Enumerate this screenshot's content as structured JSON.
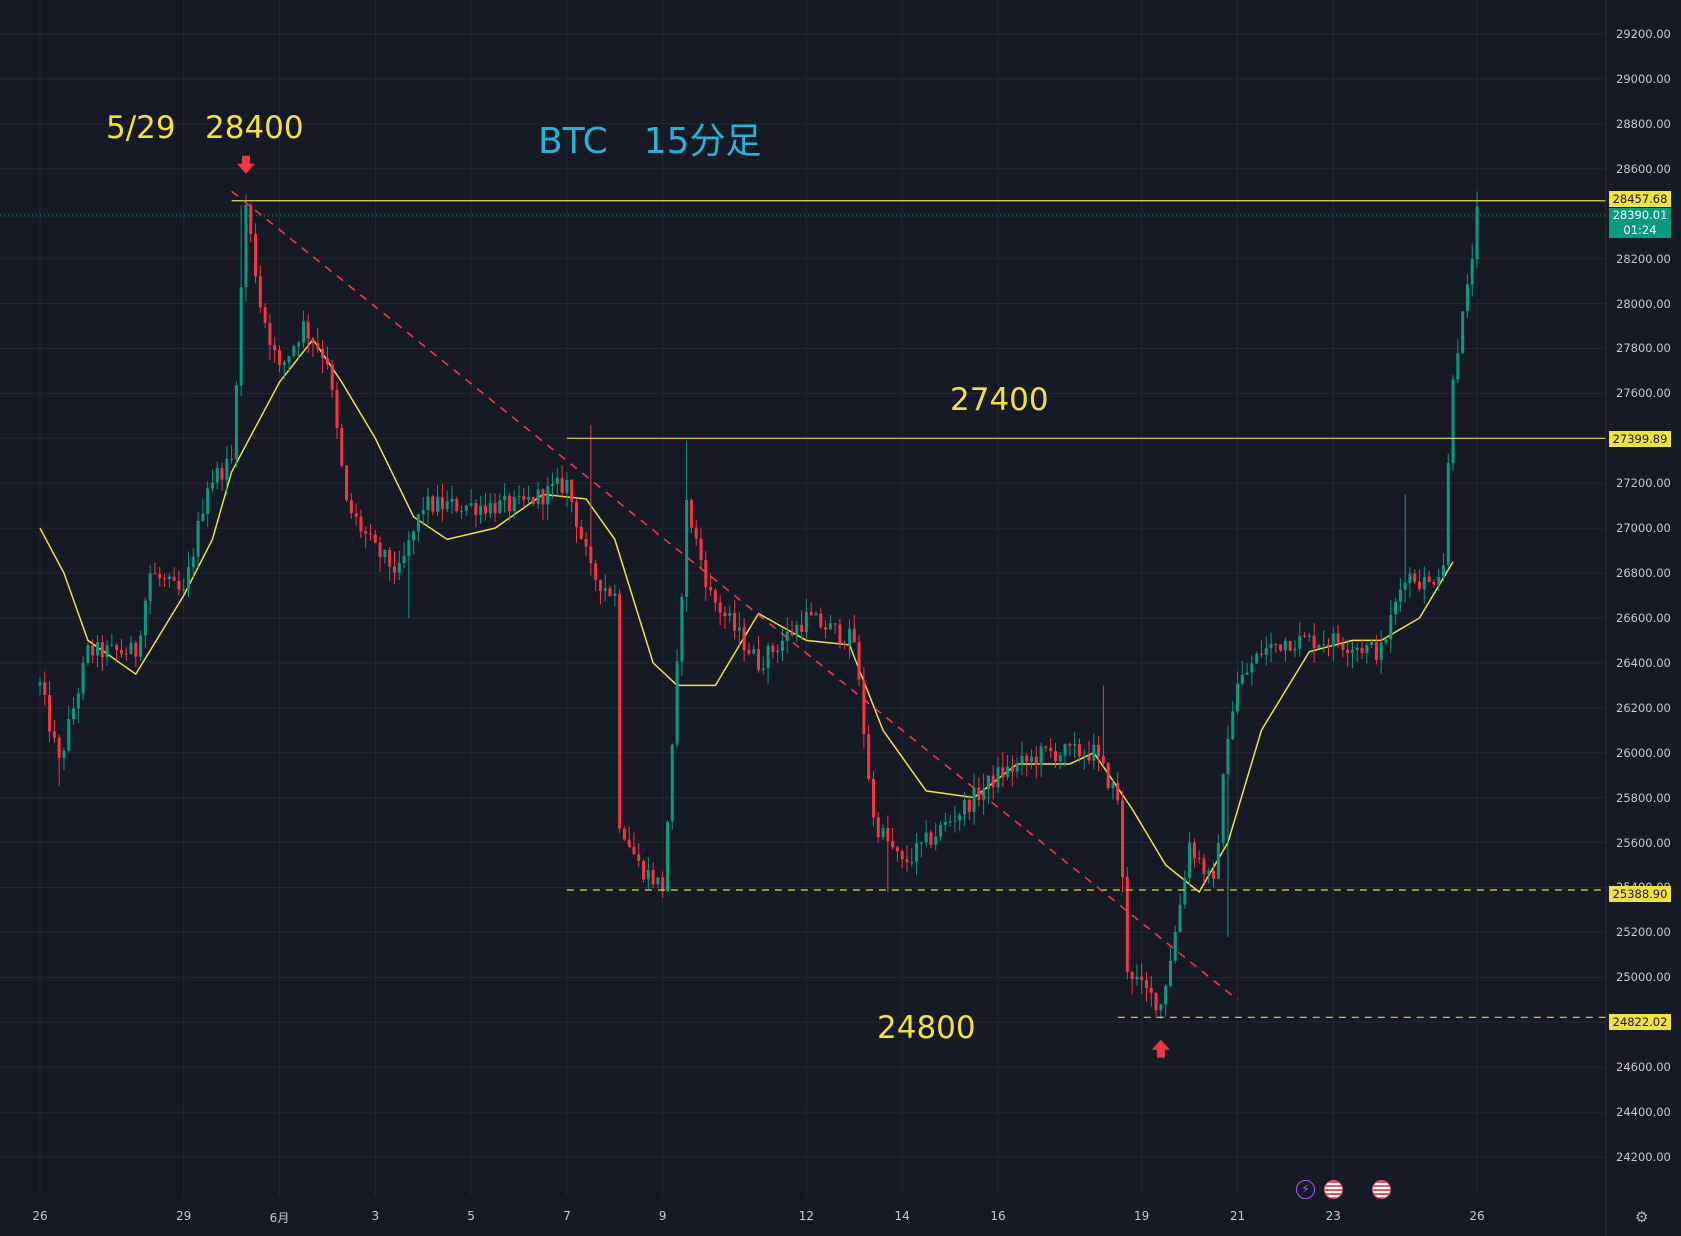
{
  "chart_data": {
    "type": "candlestick",
    "title": "BTC　15分足",
    "xlabel": "",
    "ylabel": "",
    "y_ticks": [
      "29200.00",
      "29000.00",
      "28800.00",
      "28600.00",
      "28400.00",
      "28200.00",
      "28000.00",
      "27800.00",
      "27600.00",
      "27400.00",
      "27200.00",
      "27000.00",
      "26800.00",
      "26600.00",
      "26400.00",
      "26200.00",
      "26000.00",
      "25800.00",
      "25600.00",
      "25400.00",
      "25200.00",
      "25000.00",
      "24800.00",
      "24600.00",
      "24400.00",
      "24200.00"
    ],
    "x_ticks": [
      "26",
      "29",
      "6月",
      "3",
      "5",
      "7",
      "9",
      "12",
      "14",
      "16",
      "19",
      "21",
      "23",
      "26"
    ],
    "ylim": [
      24050,
      29320
    ],
    "grid": true,
    "moving_average_color": "#f2e142",
    "up_color": "#089981",
    "down_color": "#f23645",
    "price_path": [
      {
        "d": 0,
        "p": 26300
      },
      {
        "d": 0.4,
        "p": 25950
      },
      {
        "d": 1.0,
        "p": 26450
      },
      {
        "d": 2.0,
        "p": 26450
      },
      {
        "d": 2.3,
        "p": 26800
      },
      {
        "d": 3.0,
        "p": 26700
      },
      {
        "d": 3.5,
        "p": 27200
      },
      {
        "d": 4.0,
        "p": 27300
      },
      {
        "d": 4.3,
        "p": 28440
      },
      {
        "d": 4.6,
        "p": 28000
      },
      {
        "d": 5.0,
        "p": 27700
      },
      {
        "d": 5.5,
        "p": 27900
      },
      {
        "d": 6.0,
        "p": 27750
      },
      {
        "d": 6.4,
        "p": 27100
      },
      {
        "d": 7.0,
        "p": 26900
      },
      {
        "d": 7.5,
        "p": 26800
      },
      {
        "d": 8.0,
        "p": 27100
      },
      {
        "d": 9.0,
        "p": 27100
      },
      {
        "d": 10.0,
        "p": 27100
      },
      {
        "d": 11.0,
        "p": 27200
      },
      {
        "d": 11.5,
        "p": 26800
      },
      {
        "d": 12.0,
        "p": 26700
      },
      {
        "d": 12.1,
        "p": 25700
      },
      {
        "d": 12.5,
        "p": 25500
      },
      {
        "d": 13.0,
        "p": 25400
      },
      {
        "d": 13.2,
        "p": 26000
      },
      {
        "d": 13.5,
        "p": 27100
      },
      {
        "d": 14.0,
        "p": 26700
      },
      {
        "d": 15.0,
        "p": 26400
      },
      {
        "d": 16.0,
        "p": 26600
      },
      {
        "d": 17.0,
        "p": 26500
      },
      {
        "d": 17.4,
        "p": 25700
      },
      {
        "d": 18.0,
        "p": 25500
      },
      {
        "d": 19.0,
        "p": 25700
      },
      {
        "d": 20.0,
        "p": 25900
      },
      {
        "d": 21.0,
        "p": 26000
      },
      {
        "d": 22.0,
        "p": 26000
      },
      {
        "d": 22.5,
        "p": 25800
      },
      {
        "d": 22.7,
        "p": 25050
      },
      {
        "d": 23.0,
        "p": 24950
      },
      {
        "d": 23.4,
        "p": 24880
      },
      {
        "d": 23.7,
        "p": 25200
      },
      {
        "d": 24.0,
        "p": 25600
      },
      {
        "d": 24.5,
        "p": 25400
      },
      {
        "d": 24.8,
        "p": 26100
      },
      {
        "d": 25.0,
        "p": 26300
      },
      {
        "d": 25.5,
        "p": 26450
      },
      {
        "d": 26.0,
        "p": 26500
      },
      {
        "d": 27.0,
        "p": 26500
      },
      {
        "d": 28.0,
        "p": 26450
      },
      {
        "d": 28.5,
        "p": 26800
      },
      {
        "d": 29.0,
        "p": 26750
      },
      {
        "d": 29.3,
        "p": 26850
      },
      {
        "d": 29.5,
        "p": 27700
      },
      {
        "d": 29.8,
        "p": 28050
      },
      {
        "d": 30.0,
        "p": 28390
      }
    ],
    "moving_average": [
      {
        "d": 0,
        "p": 27000
      },
      {
        "d": 0.5,
        "p": 26800
      },
      {
        "d": 1.0,
        "p": 26500
      },
      {
        "d": 2.0,
        "p": 26350
      },
      {
        "d": 3.0,
        "p": 26700
      },
      {
        "d": 3.6,
        "p": 26950
      },
      {
        "d": 4.0,
        "p": 27250
      },
      {
        "d": 5.0,
        "p": 27650
      },
      {
        "d": 5.7,
        "p": 27840
      },
      {
        "d": 6.3,
        "p": 27650
      },
      {
        "d": 7.0,
        "p": 27400
      },
      {
        "d": 7.8,
        "p": 27050
      },
      {
        "d": 8.5,
        "p": 26950
      },
      {
        "d": 9.5,
        "p": 27000
      },
      {
        "d": 10.5,
        "p": 27150
      },
      {
        "d": 11.4,
        "p": 27130
      },
      {
        "d": 12.0,
        "p": 26950
      },
      {
        "d": 12.8,
        "p": 26400
      },
      {
        "d": 13.3,
        "p": 26300
      },
      {
        "d": 14.1,
        "p": 26300
      },
      {
        "d": 15.0,
        "p": 26620
      },
      {
        "d": 16.0,
        "p": 26500
      },
      {
        "d": 16.9,
        "p": 26480
      },
      {
        "d": 17.6,
        "p": 26100
      },
      {
        "d": 18.5,
        "p": 25830
      },
      {
        "d": 19.5,
        "p": 25800
      },
      {
        "d": 20.4,
        "p": 25950
      },
      {
        "d": 21.5,
        "p": 25950
      },
      {
        "d": 22.0,
        "p": 26000
      },
      {
        "d": 22.8,
        "p": 25750
      },
      {
        "d": 23.5,
        "p": 25500
      },
      {
        "d": 24.2,
        "p": 25380
      },
      {
        "d": 24.8,
        "p": 25600
      },
      {
        "d": 25.5,
        "p": 26100
      },
      {
        "d": 26.5,
        "p": 26450
      },
      {
        "d": 27.4,
        "p": 26500
      },
      {
        "d": 28.0,
        "p": 26500
      },
      {
        "d": 28.8,
        "p": 26600
      },
      {
        "d": 29.5,
        "p": 26850
      }
    ],
    "spikes": [
      {
        "d": 4.2,
        "p": 28440
      },
      {
        "d": 5.6,
        "p": 27850
      },
      {
        "d": 11.5,
        "p": 27460
      },
      {
        "d": 13.5,
        "p": 27390
      },
      {
        "d": 22.2,
        "p": 26300
      },
      {
        "d": 28.5,
        "p": 27150
      }
    ],
    "drops": [
      {
        "d": 0.4,
        "p": 25850
      },
      {
        "d": 7.7,
        "p": 26600
      },
      {
        "d": 13.0,
        "p": 25380
      },
      {
        "d": 17.7,
        "p": 25380
      },
      {
        "d": 23.4,
        "p": 24830
      },
      {
        "d": 24.8,
        "p": 25180
      }
    ],
    "trendline": {
      "from": {
        "d": 4.0,
        "p": 28500
      },
      "to": {
        "d": 25.0,
        "p": 24900
      },
      "color": "#f23645",
      "style": "dashed"
    },
    "horizontal_levels": [
      {
        "price": 28457.68,
        "label": "28457.68",
        "from_d": 4.0,
        "style": "solid"
      },
      {
        "price": 27399.89,
        "label": "27399.89",
        "from_d": 11.0,
        "style": "solid"
      },
      {
        "price": 25388.9,
        "label": "25388.90",
        "from_d": 11.0,
        "style": "dashed"
      },
      {
        "price": 24822.02,
        "label": "24822.02",
        "from_d": 22.5,
        "style": "dashed"
      }
    ],
    "current_price": {
      "price": 28390.01,
      "label": "28390.01",
      "countdown": "01:24"
    },
    "annotations": [
      {
        "text": "5/29",
        "color": "#f2e142"
      },
      {
        "text": "28400",
        "color": "#f2e142"
      },
      {
        "text": "27400",
        "color": "#f2e142"
      },
      {
        "text": "24800",
        "color": "#f2e142"
      }
    ],
    "markers": [
      {
        "type": "arrow-down",
        "d": 4.3,
        "p": 28600,
        "color": "#f23645"
      },
      {
        "type": "arrow-up",
        "d": 23.4,
        "p": 24700,
        "color": "#f23645"
      }
    ]
  },
  "icons": [
    "flash-icon",
    "us-flag-icon",
    "us-flag-icon",
    "settings-gear-icon"
  ]
}
